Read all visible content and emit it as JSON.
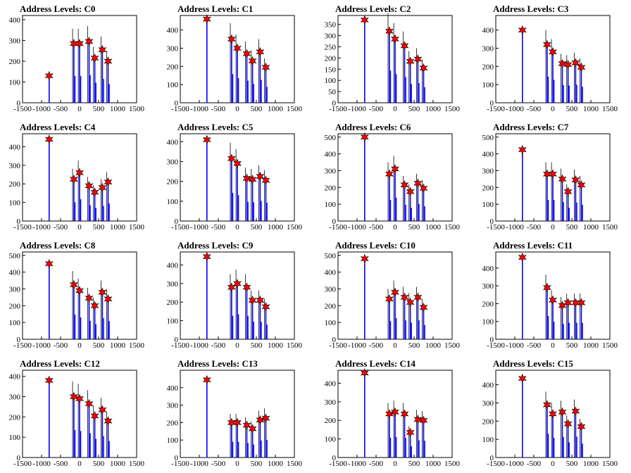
{
  "chart_data": [
    {
      "type": "bar",
      "title": "Address Levels: C0",
      "x": [
        -800,
        -150,
        0,
        250,
        400,
        600,
        750
      ],
      "values": [
        130,
        285,
        285,
        295,
        215,
        255,
        200
      ],
      "yticks": [
        0,
        100,
        200,
        300,
        400
      ],
      "ylim": [
        0,
        420
      ],
      "xticks": [
        -1500,
        -1000,
        -500,
        0,
        500,
        1000,
        1500
      ],
      "xlim": [
        -1500,
        1500
      ]
    },
    {
      "type": "bar",
      "title": "Address Levels: C1",
      "x": [
        -800,
        -150,
        0,
        250,
        400,
        600,
        750
      ],
      "values": [
        460,
        350,
        300,
        270,
        230,
        280,
        195
      ],
      "yticks": [
        0,
        100,
        200,
        300,
        400
      ],
      "ylim": [
        0,
        480
      ],
      "xticks": [
        -1500,
        -1000,
        -500,
        0,
        500,
        1000,
        1500
      ],
      "xlim": [
        -1500,
        1500
      ]
    },
    {
      "type": "bar",
      "title": "Address Levels: C2",
      "x": [
        -800,
        -150,
        0,
        250,
        400,
        600,
        750
      ],
      "values": [
        370,
        320,
        285,
        255,
        185,
        195,
        155
      ],
      "yticks": [
        0,
        50,
        100,
        150,
        200,
        250,
        300,
        350
      ],
      "ylim": [
        0,
        390
      ],
      "xticks": [
        -1500,
        -1000,
        -500,
        0,
        500,
        1000,
        1500
      ],
      "xlim": [
        -1500,
        1500
      ]
    },
    {
      "type": "bar",
      "title": "Address Levels: C3",
      "x": [
        -800,
        -150,
        0,
        250,
        400,
        600,
        750
      ],
      "values": [
        400,
        320,
        280,
        215,
        210,
        220,
        195
      ],
      "yticks": [
        0,
        100,
        200,
        300,
        400
      ],
      "ylim": [
        0,
        480
      ],
      "xticks": [
        -1500,
        -1000,
        -500,
        0,
        500,
        1000,
        1500
      ],
      "xlim": [
        -1500,
        1500
      ]
    },
    {
      "type": "bar",
      "title": "Address Levels: C4",
      "x": [
        -800,
        -150,
        0,
        250,
        400,
        600,
        750
      ],
      "values": [
        440,
        225,
        260,
        190,
        155,
        180,
        210
      ],
      "yticks": [
        0,
        100,
        200,
        300,
        400
      ],
      "ylim": [
        0,
        470
      ],
      "xticks": [
        -1500,
        -1000,
        -500,
        0,
        500,
        1000,
        1500
      ],
      "xlim": [
        -1500,
        1500
      ]
    },
    {
      "type": "bar",
      "title": "Address Levels: C5",
      "x": [
        -800,
        -150,
        0,
        250,
        400,
        600,
        750
      ],
      "values": [
        410,
        315,
        290,
        215,
        210,
        225,
        205
      ],
      "yticks": [
        0,
        100,
        200,
        300,
        400
      ],
      "ylim": [
        0,
        440
      ],
      "xticks": [
        -1500,
        -1000,
        -500,
        0,
        500,
        1000,
        1500
      ],
      "xlim": [
        -1500,
        1500
      ]
    },
    {
      "type": "bar",
      "title": "Address Levels: C6",
      "x": [
        -800,
        -150,
        0,
        250,
        400,
        600,
        750
      ],
      "values": [
        500,
        280,
        310,
        215,
        175,
        225,
        195
      ],
      "yticks": [
        0,
        100,
        200,
        300,
        400,
        500
      ],
      "ylim": [
        0,
        520
      ],
      "xticks": [
        -1500,
        -1000,
        -500,
        0,
        500,
        1000,
        1500
      ],
      "xlim": [
        -1500,
        1500
      ]
    },
    {
      "type": "bar",
      "title": "Address Levels: C7",
      "x": [
        -800,
        -150,
        0,
        250,
        400,
        600,
        750
      ],
      "values": [
        425,
        280,
        280,
        250,
        175,
        245,
        215
      ],
      "yticks": [
        0,
        100,
        200,
        300,
        400,
        500
      ],
      "ylim": [
        0,
        520
      ],
      "xticks": [
        -1500,
        -1000,
        -500,
        0,
        500,
        1000,
        1500
      ],
      "xlim": [
        -1500,
        1500
      ]
    },
    {
      "type": "bar",
      "title": "Address Levels: C8",
      "x": [
        -800,
        -150,
        0,
        250,
        400,
        600,
        750
      ],
      "values": [
        450,
        325,
        290,
        245,
        200,
        280,
        240
      ],
      "yticks": [
        0,
        100,
        200,
        300,
        400,
        500
      ],
      "ylim": [
        0,
        520
      ],
      "xticks": [
        -1500,
        -1000,
        -500,
        0,
        500,
        1000,
        1500
      ],
      "xlim": [
        -1500,
        1500
      ]
    },
    {
      "type": "bar",
      "title": "Address Levels: C9",
      "x": [
        -800,
        -150,
        0,
        250,
        400,
        600,
        750
      ],
      "values": [
        445,
        280,
        300,
        280,
        210,
        210,
        175
      ],
      "yticks": [
        0,
        100,
        200,
        300,
        400
      ],
      "ylim": [
        0,
        470
      ],
      "xticks": [
        -1500,
        -1000,
        -500,
        0,
        500,
        1000,
        1500
      ],
      "xlim": [
        -1500,
        1500
      ]
    },
    {
      "type": "bar",
      "title": "Address Levels: C10",
      "x": [
        -800,
        -150,
        0,
        250,
        400,
        600,
        750
      ],
      "values": [
        480,
        240,
        280,
        250,
        220,
        250,
        190
      ],
      "yticks": [
        0,
        100,
        200,
        300,
        400,
        500
      ],
      "ylim": [
        0,
        520
      ],
      "xticks": [
        -1500,
        -1000,
        -500,
        0,
        500,
        1000,
        1500
      ],
      "xlim": [
        -1500,
        1500
      ]
    },
    {
      "type": "bar",
      "title": "Address Levels: C11",
      "x": [
        -800,
        -150,
        0,
        250,
        400,
        600,
        750
      ],
      "values": [
        460,
        290,
        220,
        190,
        205,
        205,
        205
      ],
      "yticks": [
        0,
        100,
        200,
        300,
        400
      ],
      "ylim": [
        0,
        490
      ],
      "xticks": [
        -1500,
        -1000,
        -500,
        0,
        500,
        1000,
        1500
      ],
      "xlim": [
        -1500,
        1500
      ]
    },
    {
      "type": "bar",
      "title": "Address Levels: C12",
      "x": [
        -800,
        -150,
        0,
        250,
        400,
        600,
        750
      ],
      "values": [
        380,
        300,
        290,
        265,
        205,
        235,
        180
      ],
      "yticks": [
        0,
        100,
        200,
        300,
        400
      ],
      "ylim": [
        0,
        430
      ],
      "xticks": [
        -1500,
        -1000,
        -500,
        0,
        500,
        1000,
        1500
      ],
      "xlim": [
        -1500,
        1500
      ]
    },
    {
      "type": "bar",
      "title": "Address Levels: C13",
      "x": [
        -800,
        -150,
        0,
        250,
        400,
        600,
        750
      ],
      "values": [
        445,
        200,
        200,
        185,
        165,
        215,
        225
      ],
      "yticks": [
        0,
        100,
        200,
        300,
        400
      ],
      "ylim": [
        0,
        500
      ],
      "xticks": [
        -1500,
        -1000,
        -500,
        0,
        500,
        1000,
        1500
      ],
      "xlim": [
        -1500,
        1500
      ]
    },
    {
      "type": "bar",
      "title": "Address Levels: C14",
      "x": [
        -800,
        -150,
        0,
        250,
        400,
        600,
        750
      ],
      "values": [
        455,
        235,
        245,
        235,
        135,
        205,
        200
      ],
      "yticks": [
        0,
        100,
        200,
        300,
        400
      ],
      "ylim": [
        0,
        470
      ],
      "xticks": [
        -1500,
        -1000,
        -500,
        0,
        500,
        1000,
        1500
      ],
      "xlim": [
        -1500,
        1500
      ]
    },
    {
      "type": "bar",
      "title": "Address Levels: C15",
      "x": [
        -800,
        -150,
        0,
        250,
        400,
        600,
        750
      ],
      "values": [
        435,
        290,
        240,
        250,
        185,
        255,
        170
      ],
      "yticks": [
        0,
        100,
        200,
        300,
        400
      ],
      "ylim": [
        0,
        480
      ],
      "xticks": [
        -1500,
        -1000,
        -500,
        0,
        500,
        1000,
        1500
      ],
      "xlim": [
        -1500,
        1500
      ]
    }
  ],
  "colors": {
    "bar": "#0000ff",
    "marker": "#ff0000",
    "axis": "#000000"
  }
}
